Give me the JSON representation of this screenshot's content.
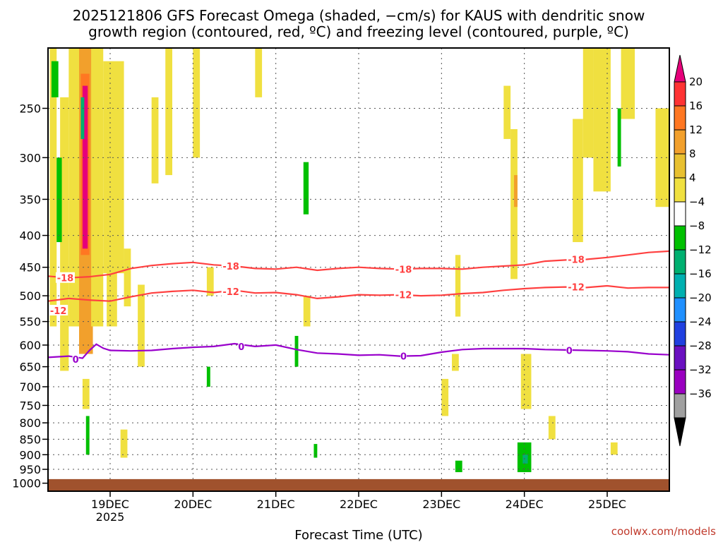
{
  "chart_data": {
    "type": "heatmap",
    "title": "2025121806 GFS Forecast Omega (shaded, −cm/s) for KAUS with dendritic snow",
    "subtitle": "growth region (contoured, red, ºC) and freezing level (contoured, purple, ºC)",
    "xlabel": "Forecast Time (UTC)",
    "ylabel": "",
    "credit": "coolwx.com/models",
    "x_range_hours": [
      0,
      180
    ],
    "y_scale": "log-pressure",
    "y_range_hpa": [
      1030,
      200
    ],
    "x_ticks": [
      {
        "hour": 18,
        "label": "19DEC",
        "sub": "2025"
      },
      {
        "hour": 42,
        "label": "20DEC",
        "sub": ""
      },
      {
        "hour": 66,
        "label": "21DEC",
        "sub": ""
      },
      {
        "hour": 90,
        "label": "22DEC",
        "sub": ""
      },
      {
        "hour": 114,
        "label": "23DEC",
        "sub": ""
      },
      {
        "hour": 138,
        "label": "24DEC",
        "sub": ""
      },
      {
        "hour": 162,
        "label": "25DEC",
        "sub": ""
      }
    ],
    "y_ticks": [
      250,
      300,
      350,
      400,
      450,
      500,
      550,
      600,
      650,
      700,
      750,
      800,
      850,
      900,
      950,
      1000
    ],
    "grid": true,
    "colorbar": {
      "labels": [
        "20",
        "16",
        "12",
        "8",
        "4",
        "−4",
        "−8",
        "−12",
        "−16",
        "−20",
        "−24",
        "−28",
        "−32",
        "−36"
      ],
      "colors": [
        "#e6007a",
        "#ff3333",
        "#ff7722",
        "#f2a02c",
        "#e8c030",
        "#f0e040",
        "#ffffff",
        "#00c000",
        "#00b070",
        "#00b0b0",
        "#2090ff",
        "#2040e0",
        "#6a10c0",
        "#9a00c0",
        "#a0a0a0",
        "#000000"
      ]
    },
    "contours": [
      {
        "label": "-18",
        "color": "#ff4040",
        "points": [
          [
            0,
            465
          ],
          [
            6,
            468
          ],
          [
            12,
            466
          ],
          [
            18,
            462
          ],
          [
            24,
            452
          ],
          [
            30,
            447
          ],
          [
            36,
            444
          ],
          [
            42,
            442
          ],
          [
            48,
            446
          ],
          [
            54,
            448
          ],
          [
            60,
            452
          ],
          [
            66,
            453
          ],
          [
            72,
            450
          ],
          [
            78,
            455
          ],
          [
            84,
            452
          ],
          [
            90,
            450
          ],
          [
            96,
            452
          ],
          [
            102,
            453
          ],
          [
            108,
            452
          ],
          [
            114,
            452
          ],
          [
            120,
            453
          ],
          [
            126,
            450
          ],
          [
            132,
            448
          ],
          [
            138,
            446
          ],
          [
            144,
            440
          ],
          [
            150,
            438
          ],
          [
            156,
            437
          ],
          [
            162,
            434
          ],
          [
            168,
            430
          ],
          [
            174,
            426
          ],
          [
            180,
            424
          ]
        ]
      },
      {
        "label": "-12",
        "color": "#ff4040",
        "points": [
          [
            0,
            510
          ],
          [
            6,
            505
          ],
          [
            12,
            508
          ],
          [
            18,
            510
          ],
          [
            24,
            502
          ],
          [
            30,
            495
          ],
          [
            36,
            492
          ],
          [
            42,
            490
          ],
          [
            48,
            494
          ],
          [
            54,
            490
          ],
          [
            60,
            495
          ],
          [
            66,
            494
          ],
          [
            72,
            498
          ],
          [
            78,
            505
          ],
          [
            84,
            502
          ],
          [
            90,
            498
          ],
          [
            96,
            499
          ],
          [
            102,
            498
          ],
          [
            108,
            500
          ],
          [
            114,
            499
          ],
          [
            120,
            496
          ],
          [
            126,
            494
          ],
          [
            132,
            490
          ],
          [
            138,
            487
          ],
          [
            144,
            485
          ],
          [
            150,
            484
          ],
          [
            156,
            485
          ],
          [
            162,
            482
          ],
          [
            168,
            486
          ],
          [
            174,
            485
          ],
          [
            180,
            485
          ]
        ]
      },
      {
        "label": "0",
        "color": "#9900cc",
        "points": [
          [
            0,
            628
          ],
          [
            6,
            625
          ],
          [
            10,
            630
          ],
          [
            12,
            612
          ],
          [
            14,
            598
          ],
          [
            16,
            607
          ],
          [
            18,
            612
          ],
          [
            24,
            613
          ],
          [
            30,
            612
          ],
          [
            36,
            608
          ],
          [
            42,
            605
          ],
          [
            48,
            603
          ],
          [
            54,
            597
          ],
          [
            60,
            603
          ],
          [
            66,
            600
          ],
          [
            72,
            610
          ],
          [
            78,
            618
          ],
          [
            84,
            620
          ],
          [
            90,
            623
          ],
          [
            96,
            622
          ],
          [
            102,
            625
          ],
          [
            108,
            624
          ],
          [
            114,
            616
          ],
          [
            120,
            610
          ],
          [
            126,
            608
          ],
          [
            132,
            608
          ],
          [
            138,
            608
          ],
          [
            144,
            610
          ],
          [
            150,
            611
          ],
          [
            156,
            612
          ],
          [
            162,
            613
          ],
          [
            168,
            615
          ],
          [
            174,
            620
          ],
          [
            180,
            622
          ]
        ]
      }
    ],
    "contour_label_positions": [
      {
        "label": "-18",
        "hour": 5,
        "p": 468
      },
      {
        "label": "-18",
        "hour": 53,
        "p": 448
      },
      {
        "label": "-18",
        "hour": 103,
        "p": 453
      },
      {
        "label": "-18",
        "hour": 153,
        "p": 437
      },
      {
        "label": "-12",
        "hour": 3,
        "p": 528
      },
      {
        "label": "-12",
        "hour": 53,
        "p": 492
      },
      {
        "label": "-12",
        "hour": 103,
        "p": 498
      },
      {
        "label": "-12",
        "hour": 153,
        "p": 484
      },
      {
        "label": "0",
        "hour": 8,
        "p": 632
      },
      {
        "label": "0",
        "hour": 56,
        "p": 603
      },
      {
        "label": "0",
        "hour": 103,
        "p": 625
      },
      {
        "label": "0",
        "hour": 151,
        "p": 612
      }
    ],
    "omega_regions": [
      {
        "x": [
          0.5,
          2.5
        ],
        "p": [
          200,
          560
        ],
        "value": 4
      },
      {
        "x": [
          3.5,
          6
        ],
        "p": [
          240,
          660
        ],
        "value": 4
      },
      {
        "x": [
          6,
          14
        ],
        "p": [
          200,
          560
        ],
        "value": 4
      },
      {
        "x": [
          9,
          13
        ],
        "p": [
          200,
          620
        ],
        "value": 8
      },
      {
        "x": [
          9.5,
          12
        ],
        "p": [
          220,
          430
        ],
        "value": 12
      },
      {
        "x": [
          10,
          11.5
        ],
        "p": [
          230,
          420
        ],
        "value": 20
      },
      {
        "x": [
          12.5,
          14
        ],
        "p": [
          220,
          400
        ],
        "value": 8
      },
      {
        "x": [
          12.5,
          16
        ],
        "p": [
          200,
          560
        ],
        "value": 4
      },
      {
        "x": [
          16,
          22
        ],
        "p": [
          210,
          460
        ],
        "value": 4
      },
      {
        "x": [
          17,
          20
        ],
        "p": [
          440,
          560
        ],
        "value": 4
      },
      {
        "x": [
          22,
          24
        ],
        "p": [
          420,
          520
        ],
        "value": 4
      },
      {
        "x": [
          26,
          28
        ],
        "p": [
          480,
          650
        ],
        "value": 4
      },
      {
        "x": [
          30,
          32
        ],
        "p": [
          240,
          330
        ],
        "value": 4
      },
      {
        "x": [
          34,
          36
        ],
        "p": [
          200,
          320
        ],
        "value": 4
      },
      {
        "x": [
          42,
          44
        ],
        "p": [
          200,
          300
        ],
        "value": 4
      },
      {
        "x": [
          46,
          48
        ],
        "p": [
          450,
          500
        ],
        "value": 4
      },
      {
        "x": [
          60,
          62
        ],
        "p": [
          200,
          240
        ],
        "value": 4
      },
      {
        "x": [
          74,
          76
        ],
        "p": [
          500,
          560
        ],
        "value": 4
      },
      {
        "x": [
          118,
          119.5
        ],
        "p": [
          430,
          540
        ],
        "value": 4
      },
      {
        "x": [
          114,
          116
        ],
        "p": [
          680,
          780
        ],
        "value": 4
      },
      {
        "x": [
          134,
          136
        ],
        "p": [
          270,
          470
        ],
        "value": 4
      },
      {
        "x": [
          135,
          136
        ],
        "p": [
          320,
          360
        ],
        "value": 8
      },
      {
        "x": [
          137,
          140
        ],
        "p": [
          620,
          760
        ],
        "value": 4
      },
      {
        "x": [
          132,
          134
        ],
        "p": [
          230,
          280
        ],
        "value": 4
      },
      {
        "x": [
          145,
          147
        ],
        "p": [
          780,
          850
        ],
        "value": 4
      },
      {
        "x": [
          155,
          158
        ],
        "p": [
          200,
          300
        ],
        "value": 4
      },
      {
        "x": [
          158,
          163
        ],
        "p": [
          200,
          340
        ],
        "value": 4
      },
      {
        "x": [
          152,
          155
        ],
        "p": [
          260,
          410
        ],
        "value": 4
      },
      {
        "x": [
          166,
          170
        ],
        "p": [
          200,
          260
        ],
        "value": 4
      },
      {
        "x": [
          176,
          180
        ],
        "p": [
          250,
          360
        ],
        "value": 4
      },
      {
        "x": [
          163,
          165
        ],
        "p": [
          860,
          900
        ],
        "value": 4
      },
      {
        "x": [
          10,
          12
        ],
        "p": [
          680,
          760
        ],
        "value": 4
      },
      {
        "x": [
          21,
          23
        ],
        "p": [
          820,
          910
        ],
        "value": 4
      },
      {
        "x": [
          117,
          119
        ],
        "p": [
          620,
          660
        ],
        "value": 4
      },
      {
        "x": [
          1,
          3
        ],
        "p": [
          210,
          240
        ],
        "value": -4
      },
      {
        "x": [
          2.5,
          4
        ],
        "p": [
          300,
          410
        ],
        "value": -4
      },
      {
        "x": [
          9.5,
          10.5
        ],
        "p": [
          240,
          280
        ],
        "value": -8
      },
      {
        "x": [
          11,
          12
        ],
        "p": [
          780,
          900
        ],
        "value": -4
      },
      {
        "x": [
          71.5,
          72.5
        ],
        "p": [
          580,
          650
        ],
        "value": -4
      },
      {
        "x": [
          74,
          75.5
        ],
        "p": [
          305,
          370
        ],
        "value": -4
      },
      {
        "x": [
          46,
          47
        ],
        "p": [
          650,
          700
        ],
        "value": -4
      },
      {
        "x": [
          77,
          78
        ],
        "p": [
          865,
          910
        ],
        "value": -4
      },
      {
        "x": [
          118,
          120
        ],
        "p": [
          920,
          960
        ],
        "value": -4
      },
      {
        "x": [
          136,
          140
        ],
        "p": [
          860,
          960
        ],
        "value": -4
      },
      {
        "x": [
          137.5,
          139
        ],
        "p": [
          900,
          930
        ],
        "value": -8
      },
      {
        "x": [
          165,
          166
        ],
        "p": [
          250,
          310
        ],
        "value": -4
      }
    ],
    "terrain": {
      "color": "#a0522d",
      "top_hpa": 985
    }
  }
}
